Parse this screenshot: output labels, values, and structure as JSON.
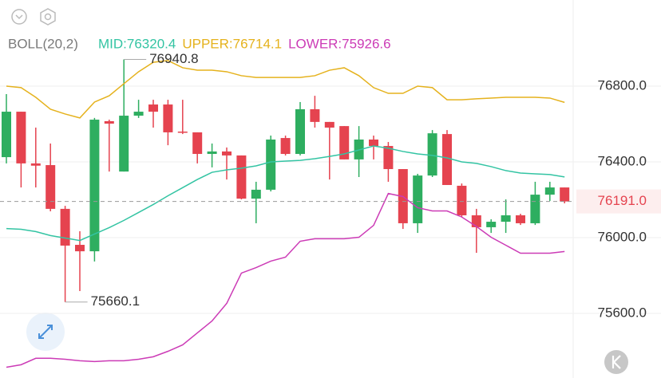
{
  "chart_data": {
    "type": "candlestick",
    "indicator": "BOLL(20,2)",
    "open": [
      76425,
      76665,
      76392,
      76383,
      76152,
      75962,
      75928,
      76615,
      76349,
      76644,
      76703,
      76703,
      76560,
      76556,
      76442,
      76455,
      76434,
      76206,
      76253,
      76526,
      76442,
      76678,
      76611,
      76589,
      76413,
      76518,
      76484,
      76362,
      76076,
      76328,
      76547,
      76274,
      76118,
      76055,
      76084,
      76118,
      76076,
      76227,
      76265
    ],
    "high": [
      76758,
      76665,
      76581,
      76497,
      76168,
      76034,
      76632,
      76623,
      76940.8,
      76728,
      76728,
      76728,
      76728,
      76556,
      76497,
      76476,
      76434,
      76295,
      76539,
      76539,
      76716,
      76749,
      76611,
      76589,
      76589,
      76539,
      76505,
      76362,
      76337,
      76568,
      76568,
      76286,
      76152,
      76097,
      76202,
      76126,
      76295,
      76295,
      76265
    ],
    "low": [
      76392,
      76265,
      76265,
      76139,
      75660.1,
      75718,
      75874,
      76349,
      76349,
      76632,
      76581,
      76488,
      76547,
      76392,
      76371,
      76307,
      76202,
      76076,
      76244,
      76434,
      76434,
      76581,
      76307,
      76413,
      76320,
      76413,
      76295,
      76046,
      76025,
      76320,
      76278,
      76109,
      75920,
      76025,
      76025,
      76067,
      76067,
      76194,
      76181
    ],
    "close": [
      76665,
      76392,
      76380,
      76152,
      75958,
      75928,
      76623,
      76602,
      76644,
      76665,
      76665,
      76556,
      76556,
      76442,
      76455,
      76434,
      76206,
      76253,
      76518,
      76442,
      76678,
      76611,
      76581,
      76413,
      76518,
      76484,
      76362,
      76076,
      76328,
      76551,
      76278,
      76118,
      76055,
      76084,
      76118,
      76076,
      76227,
      76265,
      76191
    ],
    "up_color": "#2eae60",
    "down_color": "#e5434f",
    "series": [
      {
        "name": "MID",
        "legend_label": "MID:76320.4",
        "color": "#33c4a3",
        "values": [
          76048,
          76044,
          76032,
          76011,
          75998,
          75985,
          76019,
          76053,
          76091,
          76133,
          76175,
          76221,
          76264,
          76307,
          76345,
          76358,
          76367,
          76379,
          76400,
          76404,
          76408,
          76417,
          76429,
          76442,
          76463,
          76484,
          76472,
          76455,
          76442,
          76434,
          76421,
          76400,
          76392,
          76375,
          76354,
          76341,
          76337,
          76333,
          76320.4
        ]
      },
      {
        "name": "UPPER",
        "legend_label": "UPPER:76714.1",
        "color": "#e5b21d",
        "values": [
          76800,
          76792,
          76741,
          76678,
          76653,
          76632,
          76716,
          76749,
          76813,
          76876,
          76926,
          76935,
          76897,
          76884,
          76884,
          76876,
          76855,
          76846,
          76846,
          76846,
          76846,
          76855,
          76884,
          76897,
          76855,
          76792,
          76762,
          76762,
          76800,
          76792,
          76728,
          76728,
          76733,
          76737,
          76741,
          76741,
          76741,
          76737,
          76714.1
        ]
      },
      {
        "name": "LOWER",
        "legend_label": "LOWER:75926.6",
        "color": "#cc3bb6",
        "values": [
          75316,
          75329,
          75363,
          75363,
          75358,
          75350,
          75346,
          75350,
          75350,
          75358,
          75371,
          75400,
          75434,
          75497,
          75560,
          75653,
          75813,
          75842,
          75876,
          75897,
          75981,
          75994,
          75994,
          75994,
          76002,
          76065,
          76233,
          76217,
          76158,
          76141,
          76141,
          76109,
          76059,
          76002,
          75960,
          75918,
          75918,
          75918,
          75926.6
        ]
      }
    ],
    "ylim": [
      75300,
      77200
    ],
    "yticks": [
      {
        "value": 75600,
        "label": "75600.0"
      },
      {
        "value": 76000,
        "label": "76000.0"
      },
      {
        "value": 76400,
        "label": "76400.0"
      },
      {
        "value": 76800,
        "label": "76800.0"
      }
    ],
    "grid": true,
    "last_price": {
      "value": 76191,
      "label": "76191.0"
    },
    "max_label": {
      "value": 76940.8,
      "label": "76940.8"
    },
    "min_label": {
      "value": 75660.1,
      "label": "75660.1"
    }
  }
}
